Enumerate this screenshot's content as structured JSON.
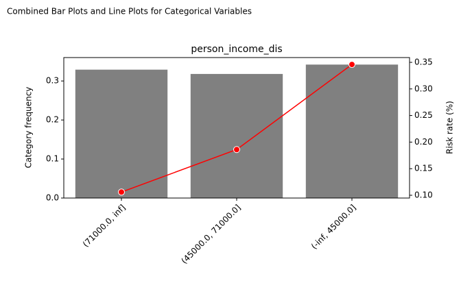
{
  "chart_data": {
    "type": "bar",
    "suptitle": "Combined Bar Plots and Line Plots for Categorical Variables",
    "title": "person_income_dis",
    "y_label": "Category frequency",
    "y2_label": "Risk rate (%)",
    "categories": [
      "(71000.0, inf]",
      "(45000.0, 71000.0]",
      "(-inf, 45000.0]"
    ],
    "series": [
      {
        "type": "bar",
        "color": "#808080",
        "values": [
          0.329,
          0.318,
          0.342
        ]
      },
      {
        "type": "line",
        "axis": "y2",
        "color": "#ff0000",
        "values": [
          0.106,
          0.186,
          0.346
        ]
      }
    ],
    "ylim": [
      0,
      0.36
    ],
    "yticks": [
      {
        "value": 0,
        "label": "0.0"
      },
      0.1,
      0.2,
      0.3
    ],
    "y2lim": [
      0.0948,
      0.359
    ],
    "y2ticks": [
      {
        "value": 0.1,
        "label": "0.10"
      },
      0.15,
      {
        "value": 0.2,
        "label": "0.20"
      },
      0.25,
      {
        "value": 0.3,
        "label": "0.30"
      },
      0.35
    ]
  }
}
